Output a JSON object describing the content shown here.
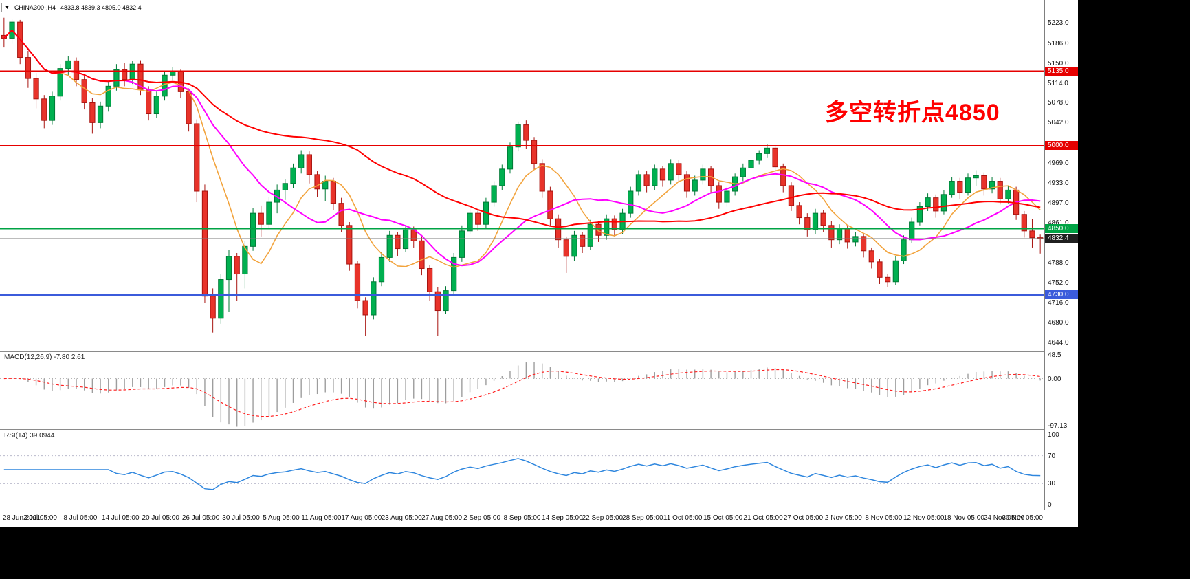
{
  "window": {
    "symbol_box": {
      "dropdown_icon": "▼",
      "symbol": "CHINA300-,H4",
      "ohlc_text": "4833.8 4839.3 4805.0 4832.4"
    },
    "annotation": {
      "text": "多空转折点4850",
      "color": "#ff0000"
    }
  },
  "chart_data": {
    "type": "candlestick",
    "symbol": "CHINA300-",
    "timeframe": "H4",
    "last_quote": {
      "open": 4833.8,
      "high": 4839.3,
      "low": 4805.0,
      "close": 4832.4
    },
    "x_axis": {
      "labels": [
        "28 Jun 2021",
        "2 Jul 05:00",
        "8 Jul 05:00",
        "14 Jul 05:00",
        "20 Jul 05:00",
        "26 Jul 05:00",
        "30 Jul 05:00",
        "5 Aug 05:00",
        "11 Aug 05:00",
        "17 Aug 05:00",
        "23 Aug 05:00",
        "27 Aug 05:00",
        "2 Sep 05:00",
        "8 Sep 05:00",
        "14 Sep 05:00",
        "22 Sep 05:00",
        "28 Sep 05:00",
        "11 Oct 05:00",
        "15 Oct 05:00",
        "21 Oct 05:00",
        "27 Oct 05:00",
        "2 Nov 05:00",
        "8 Nov 05:00",
        "12 Nov 05:00",
        "18 Nov 05:00",
        "24 Nov 05:00",
        "30 Nov 05:00"
      ]
    },
    "y_axis": {
      "tick_prices": [
        5223.0,
        5186.0,
        5150.0,
        5114.0,
        5078.0,
        5042.0,
        4969.0,
        4933.0,
        4897.0,
        4861.0,
        4788.0,
        4752.0,
        4716.0,
        4680.0,
        4644.0
      ],
      "visible_range": [
        4628,
        5264
      ]
    },
    "levels": [
      {
        "price": 5135.0,
        "label": "5135.0",
        "color": "#e60000",
        "line_width": 2
      },
      {
        "price": 5000.0,
        "label": "5000.0",
        "color": "#e60000",
        "line_width": 2
      },
      {
        "price": 4850.0,
        "label": "4850.0",
        "color": "#00a344",
        "line_width": 2
      },
      {
        "price": 4730.0,
        "label": "4730.0",
        "color": "#3b5bdb",
        "line_width": 3
      }
    ],
    "current_price": {
      "value": 4832.4,
      "label": "4832.4",
      "badge_color": "#1f1f1f",
      "line_color": "#7a7a7a"
    },
    "colors": {
      "bull": "#00b050",
      "bear": "#e8332a",
      "bull_border": "#007a36",
      "bear_border": "#a81410"
    },
    "candles": [
      [
        5200,
        5232,
        5178,
        5195
      ],
      [
        5195,
        5230,
        5185,
        5224
      ],
      [
        5224,
        5228,
        5148,
        5160
      ],
      [
        5160,
        5172,
        5105,
        5122
      ],
      [
        5122,
        5132,
        5068,
        5085
      ],
      [
        5085,
        5092,
        5032,
        5046
      ],
      [
        5046,
        5098,
        5038,
        5090
      ],
      [
        5090,
        5148,
        5082,
        5140
      ],
      [
        5140,
        5162,
        5128,
        5154
      ],
      [
        5154,
        5160,
        5108,
        5120
      ],
      [
        5120,
        5128,
        5066,
        5078
      ],
      [
        5078,
        5086,
        5022,
        5042
      ],
      [
        5042,
        5080,
        5032,
        5072
      ],
      [
        5072,
        5118,
        5062,
        5108
      ],
      [
        5108,
        5148,
        5100,
        5138
      ],
      [
        5138,
        5150,
        5108,
        5120
      ],
      [
        5120,
        5154,
        5112,
        5148
      ],
      [
        5148,
        5155,
        5092,
        5102
      ],
      [
        5102,
        5108,
        5046,
        5058
      ],
      [
        5058,
        5098,
        5050,
        5090
      ],
      [
        5090,
        5136,
        5082,
        5128
      ],
      [
        5128,
        5142,
        5118,
        5134
      ],
      [
        5134,
        5138,
        5086,
        5098
      ],
      [
        5098,
        5104,
        5026,
        5040
      ],
      [
        5040,
        5048,
        4898,
        4918
      ],
      [
        4918,
        4930,
        4716,
        4728
      ],
      [
        4728,
        4742,
        4662,
        4688
      ],
      [
        4688,
        4768,
        4678,
        4758
      ],
      [
        4758,
        4812,
        4700,
        4800
      ],
      [
        4800,
        4806,
        4720,
        4768
      ],
      [
        4768,
        4828,
        4742,
        4818
      ],
      [
        4818,
        4888,
        4810,
        4878
      ],
      [
        4878,
        4892,
        4836,
        4858
      ],
      [
        4858,
        4908,
        4850,
        4898
      ],
      [
        4898,
        4930,
        4878,
        4920
      ],
      [
        4920,
        4940,
        4902,
        4932
      ],
      [
        4932,
        4968,
        4924,
        4960
      ],
      [
        4960,
        4992,
        4950,
        4984
      ],
      [
        4984,
        4990,
        4932,
        4948
      ],
      [
        4948,
        4954,
        4908,
        4922
      ],
      [
        4922,
        4946,
        4900,
        4936
      ],
      [
        4936,
        4942,
        4884,
        4896
      ],
      [
        4896,
        4906,
        4844,
        4856
      ],
      [
        4856,
        4862,
        4774,
        4786
      ],
      [
        4786,
        4792,
        4706,
        4720
      ],
      [
        4720,
        4726,
        4656,
        4694
      ],
      [
        4694,
        4762,
        4686,
        4754
      ],
      [
        4754,
        4808,
        4746,
        4798
      ],
      [
        4798,
        4846,
        4790,
        4838
      ],
      [
        4838,
        4844,
        4800,
        4814
      ],
      [
        4814,
        4856,
        4808,
        4848
      ],
      [
        4848,
        4854,
        4816,
        4828
      ],
      [
        4828,
        4836,
        4766,
        4778
      ],
      [
        4778,
        4784,
        4720,
        4736
      ],
      [
        4736,
        4744,
        4656,
        4702
      ],
      [
        4702,
        4746,
        4696,
        4738
      ],
      [
        4738,
        4806,
        4730,
        4798
      ],
      [
        4798,
        4856,
        4790,
        4846
      ],
      [
        4846,
        4886,
        4840,
        4878
      ],
      [
        4878,
        4884,
        4846,
        4858
      ],
      [
        4858,
        4906,
        4850,
        4898
      ],
      [
        4898,
        4936,
        4890,
        4928
      ],
      [
        4928,
        4966,
        4920,
        4958
      ],
      [
        4958,
        5006,
        4950,
        4998
      ],
      [
        4998,
        5044,
        4990,
        5038
      ],
      [
        5038,
        5046,
        4994,
        5010
      ],
      [
        5010,
        5016,
        4956,
        4968
      ],
      [
        4968,
        4976,
        4906,
        4918
      ],
      [
        4918,
        4926,
        4856,
        4868
      ],
      [
        4868,
        4876,
        4816,
        4830
      ],
      [
        4830,
        4836,
        4770,
        4800
      ],
      [
        4800,
        4846,
        4792,
        4838
      ],
      [
        4838,
        4844,
        4806,
        4818
      ],
      [
        4818,
        4866,
        4812,
        4858
      ],
      [
        4858,
        4864,
        4826,
        4838
      ],
      [
        4838,
        4876,
        4830,
        4868
      ],
      [
        4868,
        4874,
        4836,
        4848
      ],
      [
        4848,
        4886,
        4840,
        4878
      ],
      [
        4878,
        4926,
        4870,
        4918
      ],
      [
        4918,
        4956,
        4910,
        4948
      ],
      [
        4948,
        4954,
        4916,
        4928
      ],
      [
        4928,
        4966,
        4920,
        4958
      ],
      [
        4958,
        4964,
        4926,
        4938
      ],
      [
        4938,
        4976,
        4930,
        4968
      ],
      [
        4968,
        4974,
        4936,
        4948
      ],
      [
        4948,
        4954,
        4906,
        4918
      ],
      [
        4918,
        4946,
        4910,
        4938
      ],
      [
        4938,
        4966,
        4930,
        4958
      ],
      [
        4958,
        4964,
        4916,
        4928
      ],
      [
        4928,
        4934,
        4886,
        4898
      ],
      [
        4898,
        4926,
        4890,
        4918
      ],
      [
        4918,
        4950,
        4910,
        4944
      ],
      [
        4944,
        4968,
        4936,
        4960
      ],
      [
        4960,
        4982,
        4952,
        4974
      ],
      [
        4974,
        4992,
        4966,
        4986
      ],
      [
        4986,
        5003,
        4978,
        4996
      ],
      [
        4996,
        5000,
        4950,
        4962
      ],
      [
        4962,
        4968,
        4916,
        4928
      ],
      [
        4928,
        4934,
        4882,
        4892
      ],
      [
        4892,
        4898,
        4858,
        4870
      ],
      [
        4870,
        4878,
        4836,
        4848
      ],
      [
        4848,
        4886,
        4840,
        4878
      ],
      [
        4878,
        4884,
        4844,
        4856
      ],
      [
        4856,
        4864,
        4816,
        4830
      ],
      [
        4830,
        4858,
        4822,
        4850
      ],
      [
        4850,
        4856,
        4814,
        4826
      ],
      [
        4826,
        4844,
        4818,
        4836
      ],
      [
        4836,
        4842,
        4798,
        4810
      ],
      [
        4810,
        4816,
        4778,
        4790
      ],
      [
        4790,
        4796,
        4750,
        4762
      ],
      [
        4762,
        4768,
        4744,
        4754
      ],
      [
        4754,
        4800,
        4748,
        4792
      ],
      [
        4792,
        4838,
        4786,
        4830
      ],
      [
        4830,
        4870,
        4824,
        4862
      ],
      [
        4862,
        4898,
        4856,
        4890
      ],
      [
        4890,
        4914,
        4882,
        4906
      ],
      [
        4906,
        4912,
        4870,
        4882
      ],
      [
        4882,
        4920,
        4876,
        4912
      ],
      [
        4912,
        4944,
        4906,
        4936
      ],
      [
        4936,
        4942,
        4904,
        4916
      ],
      [
        4916,
        4950,
        4910,
        4942
      ],
      [
        4942,
        4956,
        4928,
        4946
      ],
      [
        4946,
        4952,
        4910,
        4922
      ],
      [
        4922,
        4944,
        4914,
        4936
      ],
      [
        4936,
        4942,
        4894,
        4904
      ],
      [
        4904,
        4928,
        4896,
        4920
      ],
      [
        4920,
        4926,
        4866,
        4876
      ],
      [
        4876,
        4882,
        4834,
        4846
      ],
      [
        4846,
        4868,
        4816,
        4833.8
      ],
      [
        4833.8,
        4839.3,
        4805.0,
        4832.4
      ]
    ],
    "moving_averages": [
      {
        "name": "fast",
        "period": 8,
        "color": "#f2a33c",
        "width": 1.6
      },
      {
        "name": "medium",
        "period": 16,
        "color": "#ff00ff",
        "width": 2
      },
      {
        "name": "slow",
        "period": 45,
        "color": "#ff0000",
        "width": 2
      }
    ],
    "indicators": {
      "macd": {
        "label": "MACD(12,26,9) -7.80 2.61",
        "fast": 12,
        "slow": 26,
        "signal": 9,
        "axis_ticks": [
          {
            "value": 48.5,
            "label": "48.5"
          },
          {
            "value": 0,
            "label": "0.00"
          },
          {
            "value": -97.13,
            "label": "-97.13"
          }
        ],
        "value_range": [
          -101,
          53
        ],
        "histogram_color": "#9d9d9d",
        "signal_color": "#ff2020"
      },
      "rsi": {
        "label": "RSI(14) 39.0944",
        "period": 14,
        "current": 39.0944,
        "axis_ticks": [
          {
            "value": 100,
            "label": "100"
          },
          {
            "value": 70,
            "label": "70"
          },
          {
            "value": 30,
            "label": "30"
          },
          {
            "value": 0,
            "label": "0"
          }
        ],
        "levels": [
          70,
          30
        ],
        "value_range": [
          -6,
          106
        ],
        "line_color": "#2e86de"
      }
    }
  }
}
